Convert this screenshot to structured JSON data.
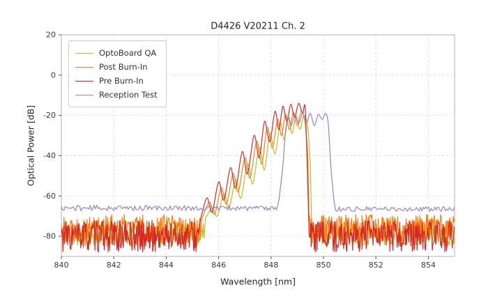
{
  "chart_data": {
    "type": "line",
    "title": "D4426 V20211 Ch. 2",
    "xlabel": "Wavelength [nm]",
    "ylabel": "Optical Power [dB]",
    "xlim": [
      840,
      855
    ],
    "ylim": [
      -90,
      20
    ],
    "xticks": [
      840,
      842,
      844,
      846,
      848,
      850,
      852,
      854
    ],
    "yticks": [
      20,
      0,
      -20,
      -40,
      -60,
      -80
    ],
    "grid": true,
    "legend_position": "upper left",
    "series": [
      {
        "name": "OptoBoard QA",
        "color": "#bcbd22",
        "seed": 11,
        "segments": [
          {
            "type": "noise",
            "x0": 840,
            "x1": 845.45,
            "mean": -79,
            "amp": 6,
            "step": 0.02
          },
          {
            "type": "points",
            "pts": [
              [
                845.5,
                -71
              ],
              [
                845.75,
                -66
              ],
              [
                845.95,
                -70
              ],
              [
                846.2,
                -59
              ],
              [
                846.4,
                -66
              ],
              [
                846.65,
                -52
              ],
              [
                846.85,
                -61
              ],
              [
                847.1,
                -44
              ],
              [
                847.3,
                -54
              ],
              [
                847.55,
                -36
              ],
              [
                847.75,
                -47
              ],
              [
                847.95,
                -29
              ],
              [
                848.15,
                -39
              ],
              [
                848.35,
                -24
              ],
              [
                848.5,
                -32
              ],
              [
                848.65,
                -21.5
              ],
              [
                848.8,
                -29
              ],
              [
                848.95,
                -20.5
              ],
              [
                849.1,
                -27
              ],
              [
                849.25,
                -20
              ],
              [
                849.4,
                -26
              ],
              [
                849.5,
                -45
              ]
            ]
          },
          {
            "type": "noise",
            "x0": 849.55,
            "x1": 855,
            "mean": -79,
            "amp": 5.5,
            "step": 0.02
          }
        ]
      },
      {
        "name": "Post Burn-In",
        "color": "#ff7f0e",
        "seed": 22,
        "segments": [
          {
            "type": "noise",
            "x0": 840,
            "x1": 845.35,
            "mean": -76,
            "amp": 7,
            "step": 0.02
          },
          {
            "type": "points",
            "pts": [
              [
                845.4,
                -70
              ],
              [
                845.65,
                -63
              ],
              [
                845.85,
                -69
              ],
              [
                846.1,
                -56
              ],
              [
                846.3,
                -64
              ],
              [
                846.55,
                -49
              ],
              [
                846.75,
                -58
              ],
              [
                847.0,
                -41
              ],
              [
                847.2,
                -51
              ],
              [
                847.45,
                -33
              ],
              [
                847.65,
                -44
              ],
              [
                847.85,
                -26
              ],
              [
                848.05,
                -36
              ],
              [
                848.25,
                -22
              ],
              [
                848.4,
                -30
              ],
              [
                848.55,
                -19.5
              ],
              [
                848.7,
                -27
              ],
              [
                848.85,
                -18.5
              ],
              [
                849.0,
                -25
              ],
              [
                849.15,
                -18
              ],
              [
                849.3,
                -24
              ],
              [
                849.4,
                -40
              ]
            ]
          },
          {
            "type": "noise",
            "x0": 849.45,
            "x1": 855,
            "mean": -76,
            "amp": 7,
            "step": 0.02
          }
        ]
      },
      {
        "name": "Pre Burn-In",
        "color": "#d62728",
        "seed": 33,
        "segments": [
          {
            "type": "noise",
            "x0": 840,
            "x1": 845.25,
            "mean": -80,
            "amp": 8,
            "step": 0.02
          },
          {
            "type": "points",
            "pts": [
              [
                845.3,
                -72
              ],
              [
                845.55,
                -61
              ],
              [
                845.75,
                -68
              ],
              [
                846.0,
                -53
              ],
              [
                846.2,
                -62
              ],
              [
                846.45,
                -46
              ],
              [
                846.65,
                -56
              ],
              [
                846.9,
                -38
              ],
              [
                847.1,
                -49
              ],
              [
                847.35,
                -30
              ],
              [
                847.55,
                -41
              ],
              [
                847.75,
                -23
              ],
              [
                847.95,
                -33
              ],
              [
                848.15,
                -18
              ],
              [
                848.3,
                -27
              ],
              [
                848.45,
                -15.5
              ],
              [
                848.6,
                -23
              ],
              [
                848.75,
                -14.5
              ],
              [
                848.9,
                -21
              ],
              [
                849.05,
                -14
              ],
              [
                849.2,
                -19
              ],
              [
                849.3,
                -16
              ],
              [
                849.38,
                -45
              ]
            ]
          },
          {
            "type": "noise",
            "x0": 849.45,
            "x1": 855,
            "mean": -80,
            "amp": 8,
            "step": 0.02
          }
        ]
      },
      {
        "name": "Reception Test",
        "color": "#9b80c4",
        "seed": 44,
        "segments": [
          {
            "type": "noise",
            "x0": 840,
            "x1": 848.25,
            "mean": -66,
            "amp": 1.3,
            "step": 0.05
          },
          {
            "type": "points",
            "pts": [
              [
                848.3,
                -62
              ],
              [
                848.45,
                -45
              ],
              [
                848.55,
                -28
              ],
              [
                848.65,
                -20.5
              ],
              [
                848.78,
                -25
              ],
              [
                848.9,
                -19.5
              ],
              [
                849.05,
                -24
              ],
              [
                849.2,
                -19
              ],
              [
                849.35,
                -23.5
              ],
              [
                849.5,
                -19
              ],
              [
                849.65,
                -25
              ],
              [
                849.8,
                -19.5
              ],
              [
                849.95,
                -22
              ],
              [
                850.08,
                -19
              ],
              [
                850.18,
                -24
              ],
              [
                850.28,
                -45
              ],
              [
                850.38,
                -60
              ]
            ]
          },
          {
            "type": "noise",
            "x0": 850.45,
            "x1": 855,
            "mean": -66.5,
            "amp": 1.2,
            "step": 0.05
          }
        ]
      }
    ],
    "style": {
      "grid_color": "#d8d8d8",
      "spine_color": "#b0b0b0",
      "tick_color": "#555555"
    }
  }
}
